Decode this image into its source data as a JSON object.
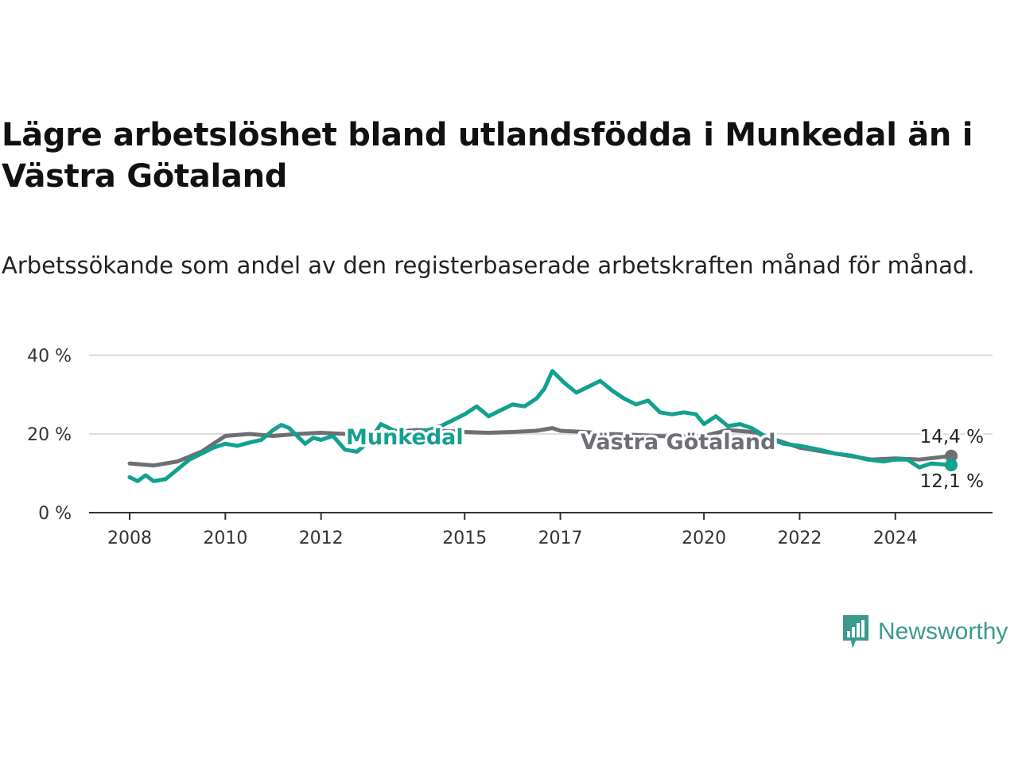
{
  "header": {
    "title": "Lägre arbetslöshet bland utlandsfödda i Munkedal än i Västra Götaland",
    "subtitle": "Arbetssökande som andel av den registerbaserade arbetskraften månad för månad."
  },
  "brand": {
    "name": "Newsworthy",
    "icon": "newsworthy-chart-icon",
    "color": "#3a9a8c"
  },
  "chart_data": {
    "type": "line",
    "title": "Lägre arbetslöshet bland utlandsfödda i Munkedal än i Västra Götaland",
    "subtitle": "Arbetssökande som andel av den registerbaserade arbetskraften månad för månad.",
    "xlabel": "",
    "ylabel": "",
    "xlim": [
      "2008-01",
      "2025-03"
    ],
    "ylim": [
      0,
      40
    ],
    "y_ticks": [
      {
        "value": 0,
        "label": "0 %"
      },
      {
        "value": 20,
        "label": "20 %"
      },
      {
        "value": 40,
        "label": "40 %"
      }
    ],
    "x_ticks": [
      {
        "x": "2008-01",
        "label": "2008"
      },
      {
        "x": "2010-01",
        "label": "2010"
      },
      {
        "x": "2012-01",
        "label": "2012"
      },
      {
        "x": "2015-01",
        "label": "2015"
      },
      {
        "x": "2017-01",
        "label": "2017"
      },
      {
        "x": "2020-01",
        "label": "2020"
      },
      {
        "x": "2022-01",
        "label": "2022"
      },
      {
        "x": "2024-01",
        "label": "2024"
      }
    ],
    "grid": "horizontal",
    "series": [
      {
        "name": "Västra Götaland",
        "color": "#6e6e75",
        "end_label": "14,4 %",
        "points": [
          [
            "2008-01",
            12.5
          ],
          [
            "2008-07",
            12.0
          ],
          [
            "2009-01",
            13.0
          ],
          [
            "2009-07",
            15.5
          ],
          [
            "2010-01",
            19.5
          ],
          [
            "2010-07",
            20.0
          ],
          [
            "2011-01",
            19.5
          ],
          [
            "2011-07",
            20.0
          ],
          [
            "2012-01",
            20.3
          ],
          [
            "2012-07",
            20.0
          ],
          [
            "2013-01",
            20.2
          ],
          [
            "2013-07",
            20.5
          ],
          [
            "2014-01",
            21.0
          ],
          [
            "2014-07",
            20.8
          ],
          [
            "2015-01",
            20.5
          ],
          [
            "2015-07",
            20.3
          ],
          [
            "2016-01",
            20.5
          ],
          [
            "2016-07",
            20.8
          ],
          [
            "2016-11",
            21.5
          ],
          [
            "2017-01",
            20.8
          ],
          [
            "2017-07",
            20.5
          ],
          [
            "2018-01",
            20.0
          ],
          [
            "2018-07",
            19.8
          ],
          [
            "2019-01",
            19.5
          ],
          [
            "2019-07",
            19.3
          ],
          [
            "2020-01",
            19.5
          ],
          [
            "2020-07",
            21.0
          ],
          [
            "2021-01",
            20.5
          ],
          [
            "2021-07",
            18.5
          ],
          [
            "2022-01",
            16.5
          ],
          [
            "2022-07",
            15.5
          ],
          [
            "2023-01",
            14.5
          ],
          [
            "2023-07",
            13.5
          ],
          [
            "2024-01",
            13.8
          ],
          [
            "2024-07",
            13.5
          ],
          [
            "2025-03",
            14.4
          ]
        ]
      },
      {
        "name": "Munkedal",
        "color": "#12a08f",
        "end_label": "12,1 %",
        "points": [
          [
            "2008-01",
            9.0
          ],
          [
            "2008-03",
            8.0
          ],
          [
            "2008-05",
            9.5
          ],
          [
            "2008-07",
            8.0
          ],
          [
            "2008-10",
            8.5
          ],
          [
            "2009-01",
            11.0
          ],
          [
            "2009-04",
            13.5
          ],
          [
            "2009-07",
            15.0
          ],
          [
            "2009-10",
            16.5
          ],
          [
            "2010-01",
            17.5
          ],
          [
            "2010-04",
            17.0
          ],
          [
            "2010-07",
            17.8
          ],
          [
            "2010-10",
            18.5
          ],
          [
            "2011-01",
            21.0
          ],
          [
            "2011-03",
            22.3
          ],
          [
            "2011-05",
            21.5
          ],
          [
            "2011-09",
            17.5
          ],
          [
            "2011-11",
            19.0
          ],
          [
            "2012-01",
            18.5
          ],
          [
            "2012-04",
            19.5
          ],
          [
            "2012-07",
            16.0
          ],
          [
            "2012-10",
            15.5
          ],
          [
            "2013-01",
            18.0
          ],
          [
            "2013-04",
            22.5
          ],
          [
            "2013-07",
            21.0
          ],
          [
            "2013-10",
            20.0
          ],
          [
            "2014-01",
            20.5
          ],
          [
            "2014-04",
            21.0
          ],
          [
            "2014-07",
            22.0
          ],
          [
            "2014-10",
            23.5
          ],
          [
            "2015-01",
            25.0
          ],
          [
            "2015-04",
            27.0
          ],
          [
            "2015-07",
            24.5
          ],
          [
            "2015-10",
            26.0
          ],
          [
            "2016-01",
            27.5
          ],
          [
            "2016-04",
            27.0
          ],
          [
            "2016-07",
            29.0
          ],
          [
            "2016-09",
            31.5
          ],
          [
            "2016-11",
            36.0
          ],
          [
            "2017-02",
            33.0
          ],
          [
            "2017-05",
            30.5
          ],
          [
            "2017-08",
            32.0
          ],
          [
            "2017-11",
            33.5
          ],
          [
            "2018-02",
            31.0
          ],
          [
            "2018-05",
            29.0
          ],
          [
            "2018-08",
            27.5
          ],
          [
            "2018-11",
            28.5
          ],
          [
            "2019-02",
            25.5
          ],
          [
            "2019-05",
            25.0
          ],
          [
            "2019-08",
            25.5
          ],
          [
            "2019-11",
            25.0
          ],
          [
            "2020-01",
            22.5
          ],
          [
            "2020-04",
            24.5
          ],
          [
            "2020-07",
            22.0
          ],
          [
            "2020-10",
            22.5
          ],
          [
            "2021-01",
            21.5
          ],
          [
            "2021-05",
            19.0
          ],
          [
            "2021-09",
            17.5
          ],
          [
            "2022-01",
            17.0
          ],
          [
            "2022-06",
            16.0
          ],
          [
            "2022-10",
            15.0
          ],
          [
            "2023-02",
            14.5
          ],
          [
            "2023-06",
            13.5
          ],
          [
            "2023-10",
            13.0
          ],
          [
            "2024-01",
            13.5
          ],
          [
            "2024-04",
            13.5
          ],
          [
            "2024-07",
            11.5
          ],
          [
            "2024-10",
            12.5
          ],
          [
            "2025-03",
            12.1
          ]
        ]
      }
    ]
  }
}
